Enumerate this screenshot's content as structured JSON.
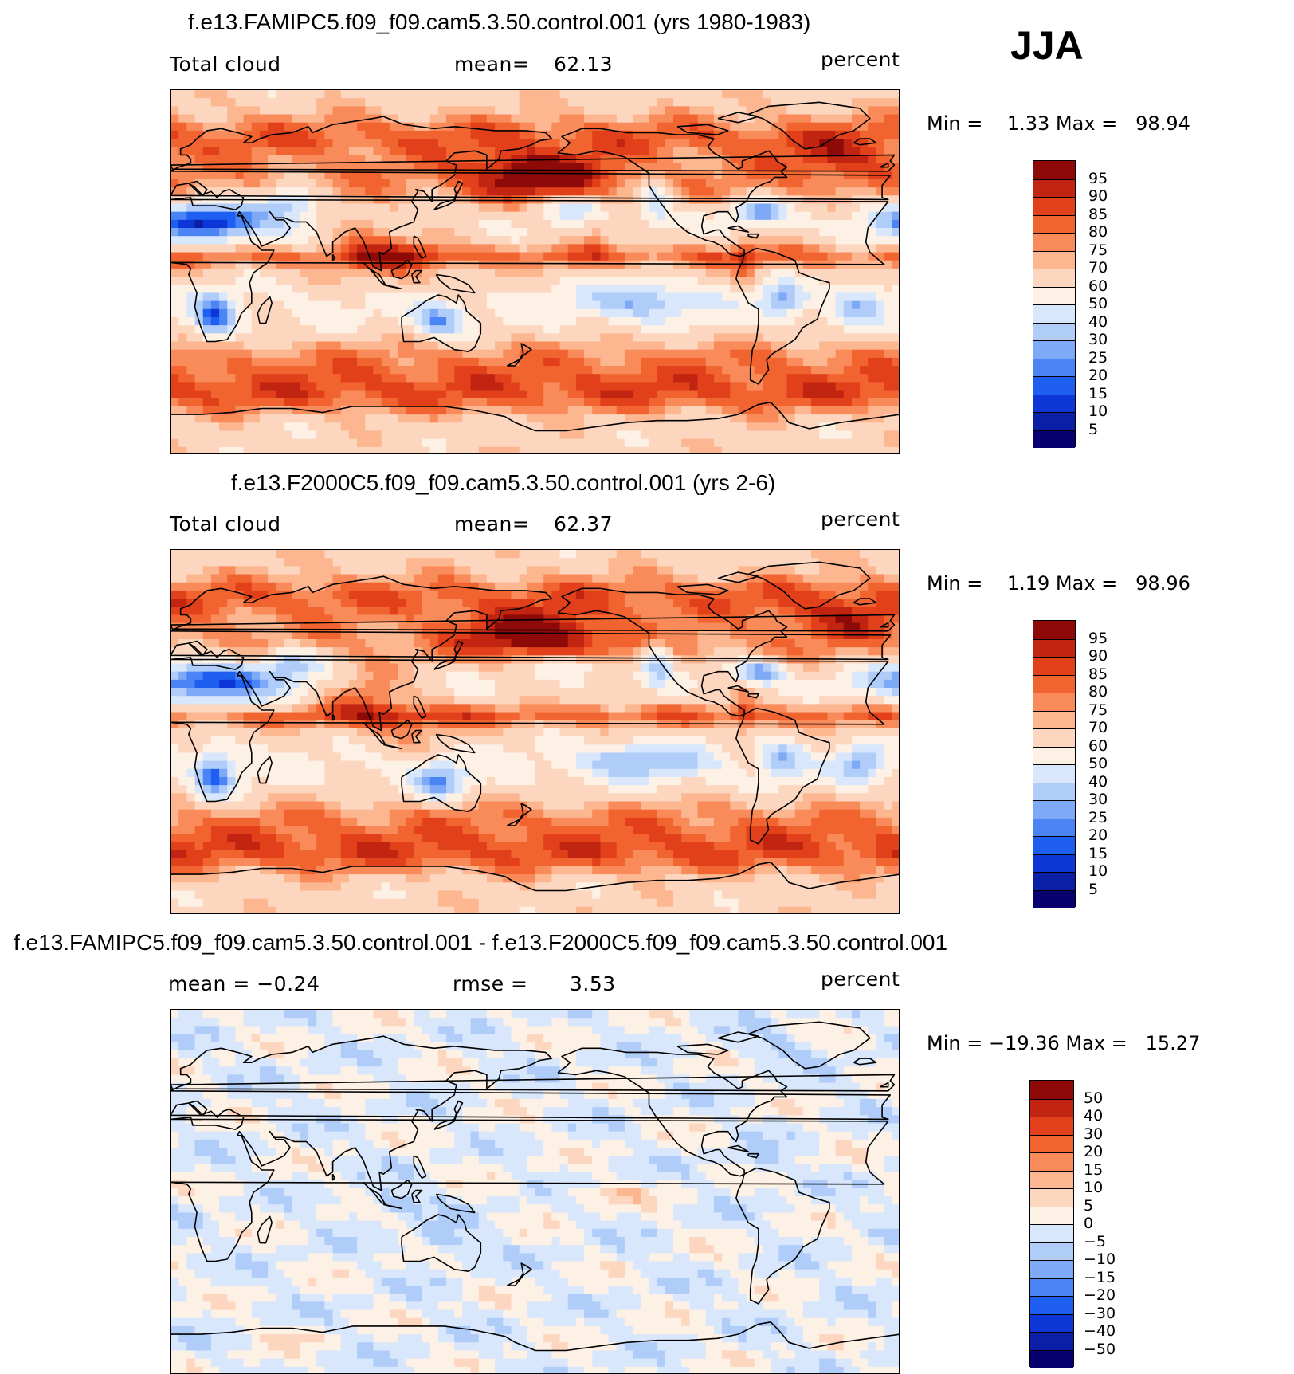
{
  "season": "JJA",
  "colors": {
    "abs_scale": [
      "#08006e",
      "#0a1fa6",
      "#0d36d6",
      "#1e5ef0",
      "#4a84f5",
      "#7ea9f7",
      "#b0cdf9",
      "#d8e7fb",
      "#fdf0e4",
      "#fdd6bf",
      "#fcb690",
      "#f98a5a",
      "#f2642f",
      "#e2401b",
      "#c12410",
      "#8e0a08"
    ],
    "diff_scale": [
      "#08006e",
      "#0a1fa6",
      "#0d36d6",
      "#1e5ef0",
      "#4a84f5",
      "#7ea9f7",
      "#b0cdf9",
      "#d8e7fb",
      "#fdf0e4",
      "#fdd6bf",
      "#fcb690",
      "#f98a5a",
      "#f2642f",
      "#e2401b",
      "#c12410",
      "#8e0a08"
    ]
  },
  "panels": [
    {
      "title": "f.e13.FAMIPC5.f09_f09.cam5.3.50.control.001 (yrs 1980-1983)",
      "left_label": "Total cloud",
      "mean_label": "mean=",
      "mean_value": "62.13",
      "units": "percent",
      "minmax": "Min =    1.33 Max =   98.94",
      "legend_labels": [
        "95",
        "90",
        "85",
        "80",
        "75",
        "70",
        "60",
        "50",
        "40",
        "30",
        "25",
        "20",
        "15",
        "10",
        "5"
      ],
      "field": "abs1"
    },
    {
      "title": "f.e13.F2000C5.f09_f09.cam5.3.50.control.001 (yrs 2-6)",
      "left_label": "Total cloud",
      "mean_label": "mean=",
      "mean_value": "62.37",
      "units": "percent",
      "minmax": "Min =    1.19 Max =   98.96",
      "legend_labels": [
        "95",
        "90",
        "85",
        "80",
        "75",
        "70",
        "60",
        "50",
        "40",
        "30",
        "25",
        "20",
        "15",
        "10",
        "5"
      ],
      "field": "abs2"
    },
    {
      "title": "f.e13.FAMIPC5.f09_f09.cam5.3.50.control.001 - f.e13.F2000C5.f09_f09.cam5.3.50.control.001",
      "left_label": "mean =   −0.24",
      "mean_label": "rmse =",
      "mean_value": "3.53",
      "units": "percent",
      "minmax": "Min = −19.36 Max =   15.27",
      "legend_labels": [
        "50",
        "40",
        "30",
        "20",
        "15",
        "10",
        "5",
        "0",
        "−5",
        "−10",
        "−15",
        "−20",
        "−30",
        "−40",
        "−50"
      ],
      "field": "diff"
    }
  ]
}
